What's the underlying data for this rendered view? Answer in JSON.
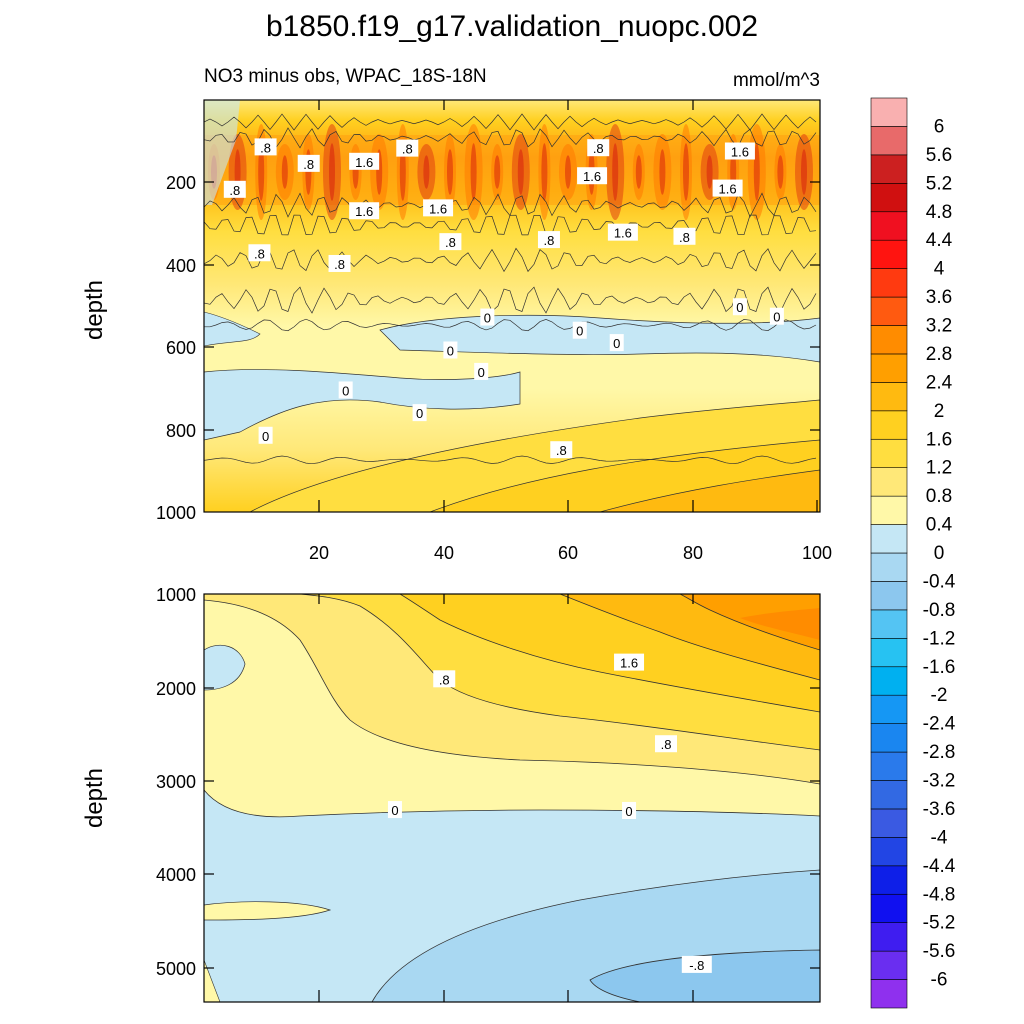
{
  "figure": {
    "title": "b1850.f19_g17.validation_nuopc.002",
    "subtitle": "NO3 minus obs, WPAC_18S-18N",
    "units": "mmol/m^3"
  },
  "chart_data": [
    {
      "type": "heatmap",
      "panel": "upper",
      "title": "NO3 minus obs, WPAC_18S-18N",
      "xlabel": "",
      "ylabel": "depth",
      "xlim": [
        1,
        101
      ],
      "ylim": [
        0,
        1000
      ],
      "y_inverted": true,
      "x_ticks": [
        "20",
        "40",
        "60",
        "80",
        "100"
      ],
      "y_ticks": [
        "200",
        "400",
        "600",
        "800",
        "1000"
      ],
      "contour_labels": [
        {
          "text": ".8",
          "x": 11,
          "y": 115
        },
        {
          "text": ".8",
          "x": 34,
          "y": 118
        },
        {
          "text": ".8",
          "x": 65,
          "y": 117
        },
        {
          "text": "1.6",
          "x": 88,
          "y": 125
        },
        {
          "text": "1.6",
          "x": 27,
          "y": 150
        },
        {
          "text": ".8",
          "x": 18,
          "y": 155
        },
        {
          "text": "1.6",
          "x": 64,
          "y": 185
        },
        {
          "text": ".8",
          "x": 6,
          "y": 218
        },
        {
          "text": "1.6",
          "x": 86,
          "y": 215
        },
        {
          "text": "1.6",
          "x": 27,
          "y": 270
        },
        {
          "text": "1.6",
          "x": 39,
          "y": 263
        },
        {
          "text": "1.6",
          "x": 69,
          "y": 322
        },
        {
          "text": ".8",
          "x": 41,
          "y": 345
        },
        {
          "text": ".8",
          "x": 57,
          "y": 340
        },
        {
          "text": ".8",
          "x": 79,
          "y": 332
        },
        {
          "text": ".8",
          "x": 10,
          "y": 372
        },
        {
          "text": ".8",
          "x": 23,
          "y": 398
        },
        {
          "text": "0",
          "x": 88,
          "y": 503
        },
        {
          "text": "0",
          "x": 94,
          "y": 526
        },
        {
          "text": "0",
          "x": 47,
          "y": 528
        },
        {
          "text": "0",
          "x": 62,
          "y": 560
        },
        {
          "text": "0",
          "x": 68,
          "y": 590
        },
        {
          "text": "0",
          "x": 41,
          "y": 608
        },
        {
          "text": "0",
          "x": 46,
          "y": 660
        },
        {
          "text": "0",
          "x": 24,
          "y": 705
        },
        {
          "text": "0",
          "x": 36,
          "y": 760
        },
        {
          "text": "0",
          "x": 11,
          "y": 815
        },
        {
          "text": ".8",
          "x": 59,
          "y": 850
        }
      ]
    },
    {
      "type": "heatmap",
      "panel": "lower",
      "xlabel": "",
      "ylabel": "depth",
      "xlim": [
        1,
        101
      ],
      "ylim": [
        1000,
        5400
      ],
      "y_inverted": true,
      "y_ticks": [
        "1000",
        "2000",
        "3000",
        "4000",
        "5000"
      ],
      "contour_labels": [
        {
          "text": "1.6",
          "x": 70,
          "y": 1740
        },
        {
          "text": ".8",
          "x": 40,
          "y": 1920
        },
        {
          "text": ".8",
          "x": 76,
          "y": 2620
        },
        {
          "text": "0",
          "x": 32,
          "y": 3330
        },
        {
          "text": "0",
          "x": 70,
          "y": 3340
        },
        {
          "text": "-.8",
          "x": 81,
          "y": 5000
        }
      ]
    }
  ],
  "colorbar": {
    "levels": [
      "-6",
      "-5.6",
      "-5.2",
      "-4.8",
      "-4.4",
      "-4",
      "-3.6",
      "-3.2",
      "-2.8",
      "-2.4",
      "-2",
      "-1.6",
      "-1.2",
      "-0.8",
      "-0.4",
      "0",
      "0.4",
      "0.8",
      "1.2",
      "1.6",
      "2",
      "2.4",
      "2.8",
      "3.2",
      "3.6",
      "4",
      "4.4",
      "4.8",
      "5.2",
      "5.6",
      "6"
    ],
    "colors": [
      "#8F30EE",
      "#6A2EF0",
      "#3F1DF0",
      "#1010F0",
      "#0E1FE8",
      "#2245E4",
      "#3A5AE2",
      "#3269E3",
      "#2A7AEB",
      "#1A86F0",
      "#1597F4",
      "#00B0F0",
      "#27C2F2",
      "#54C4F3",
      "#8CC7EE",
      "#A9D8F2",
      "#C5E7F5",
      "#FFF8A8",
      "#FFE878",
      "#FFDE40",
      "#FFD020",
      "#FFBA10",
      "#FF9F00",
      "#FF8C00",
      "#FF5A10",
      "#FF3A10",
      "#FF1410",
      "#F01020",
      "#D01010",
      "#CC2020",
      "#E86A6A",
      "#F9B0B0"
    ]
  }
}
